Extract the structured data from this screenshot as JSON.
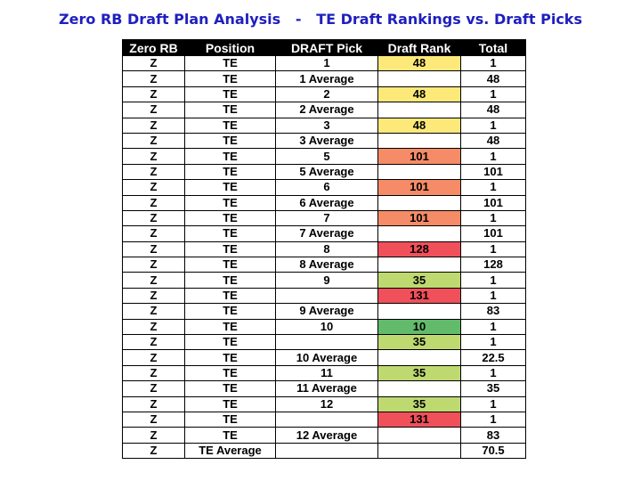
{
  "title": "Zero RB Draft Plan Analysis   -   TE Draft Rankings vs. Draft Picks",
  "columns": [
    "Zero RB",
    "Position",
    "DRAFT Pick",
    "Draft Rank",
    "Total"
  ],
  "rank_colors": {
    "yellow": "#fde97a",
    "orange": "#f58b67",
    "red": "#f0505a",
    "lightgreen": "#bfd971",
    "green": "#62bb6b"
  },
  "rows": [
    {
      "zero_rb": "Z",
      "position": "TE",
      "draft_pick": "1",
      "draft_rank": "48",
      "rank_color": "yellow",
      "total": "1"
    },
    {
      "zero_rb": "Z",
      "position": "TE",
      "draft_pick": "1 Average",
      "draft_rank": "",
      "rank_color": "",
      "total": "48"
    },
    {
      "zero_rb": "Z",
      "position": "TE",
      "draft_pick": "2",
      "draft_rank": "48",
      "rank_color": "yellow",
      "total": "1"
    },
    {
      "zero_rb": "Z",
      "position": "TE",
      "draft_pick": "2 Average",
      "draft_rank": "",
      "rank_color": "",
      "total": "48"
    },
    {
      "zero_rb": "Z",
      "position": "TE",
      "draft_pick": "3",
      "draft_rank": "48",
      "rank_color": "yellow",
      "total": "1"
    },
    {
      "zero_rb": "Z",
      "position": "TE",
      "draft_pick": "3 Average",
      "draft_rank": "",
      "rank_color": "",
      "total": "48"
    },
    {
      "zero_rb": "Z",
      "position": "TE",
      "draft_pick": "5",
      "draft_rank": "101",
      "rank_color": "orange",
      "total": "1"
    },
    {
      "zero_rb": "Z",
      "position": "TE",
      "draft_pick": "5 Average",
      "draft_rank": "",
      "rank_color": "",
      "total": "101"
    },
    {
      "zero_rb": "Z",
      "position": "TE",
      "draft_pick": "6",
      "draft_rank": "101",
      "rank_color": "orange",
      "total": "1"
    },
    {
      "zero_rb": "Z",
      "position": "TE",
      "draft_pick": "6 Average",
      "draft_rank": "",
      "rank_color": "",
      "total": "101"
    },
    {
      "zero_rb": "Z",
      "position": "TE",
      "draft_pick": "7",
      "draft_rank": "101",
      "rank_color": "orange",
      "total": "1"
    },
    {
      "zero_rb": "Z",
      "position": "TE",
      "draft_pick": "7 Average",
      "draft_rank": "",
      "rank_color": "",
      "total": "101"
    },
    {
      "zero_rb": "Z",
      "position": "TE",
      "draft_pick": "8",
      "draft_rank": "128",
      "rank_color": "red",
      "total": "1"
    },
    {
      "zero_rb": "Z",
      "position": "TE",
      "draft_pick": "8 Average",
      "draft_rank": "",
      "rank_color": "",
      "total": "128"
    },
    {
      "zero_rb": "Z",
      "position": "TE",
      "draft_pick": "9",
      "draft_rank": "35",
      "rank_color": "lightgreen",
      "total": "1"
    },
    {
      "zero_rb": "Z",
      "position": "TE",
      "draft_pick": "",
      "draft_rank": "131",
      "rank_color": "red",
      "total": "1"
    },
    {
      "zero_rb": "Z",
      "position": "TE",
      "draft_pick": "9 Average",
      "draft_rank": "",
      "rank_color": "",
      "total": "83"
    },
    {
      "zero_rb": "Z",
      "position": "TE",
      "draft_pick": "10",
      "draft_rank": "10",
      "rank_color": "green",
      "total": "1"
    },
    {
      "zero_rb": "Z",
      "position": "TE",
      "draft_pick": "",
      "draft_rank": "35",
      "rank_color": "lightgreen",
      "total": "1"
    },
    {
      "zero_rb": "Z",
      "position": "TE",
      "draft_pick": "10 Average",
      "draft_rank": "",
      "rank_color": "",
      "total": "22.5"
    },
    {
      "zero_rb": "Z",
      "position": "TE",
      "draft_pick": "11",
      "draft_rank": "35",
      "rank_color": "lightgreen",
      "total": "1"
    },
    {
      "zero_rb": "Z",
      "position": "TE",
      "draft_pick": "11 Average",
      "draft_rank": "",
      "rank_color": "",
      "total": "35"
    },
    {
      "zero_rb": "Z",
      "position": "TE",
      "draft_pick": "12",
      "draft_rank": "35",
      "rank_color": "lightgreen",
      "total": "1"
    },
    {
      "zero_rb": "Z",
      "position": "TE",
      "draft_pick": "",
      "draft_rank": "131",
      "rank_color": "red",
      "total": "1"
    },
    {
      "zero_rb": "Z",
      "position": "TE",
      "draft_pick": "12 Average",
      "draft_rank": "",
      "rank_color": "",
      "total": "83"
    },
    {
      "zero_rb": "Z",
      "position": "TE Average",
      "draft_pick": "",
      "draft_rank": "",
      "rank_color": "",
      "total": "70.5"
    }
  ]
}
